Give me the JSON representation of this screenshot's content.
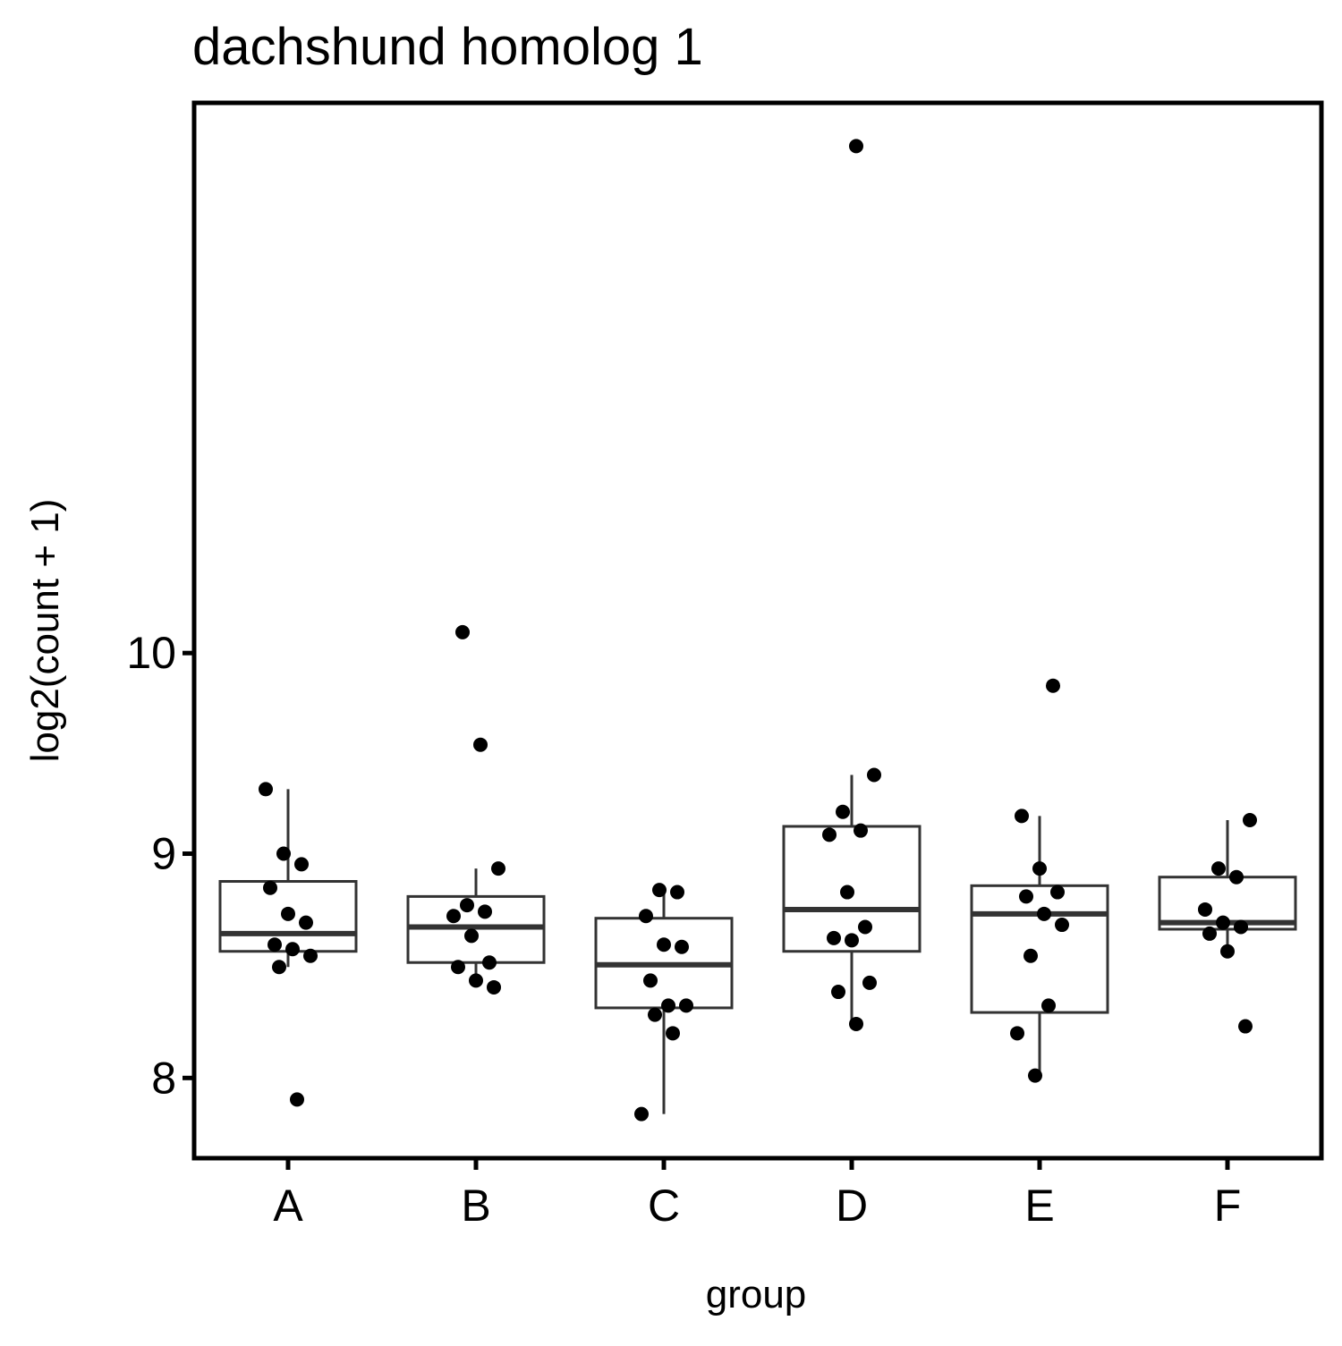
{
  "chart_data": {
    "type": "box",
    "title": "dachshund homolog 1",
    "x_label": "group",
    "y_label": "log2(count + 1)",
    "categories": [
      "A",
      "B",
      "C",
      "D",
      "E",
      "F"
    ],
    "stats": [
      {
        "low": 8.48,
        "q1": 8.55,
        "median": 8.63,
        "q3": 8.87,
        "high": 9.31
      },
      {
        "low": 8.4,
        "q1": 8.5,
        "median": 8.66,
        "q3": 8.8,
        "high": 8.93
      },
      {
        "low": 7.85,
        "q1": 8.3,
        "median": 8.49,
        "q3": 8.7,
        "high": 8.83
      },
      {
        "low": 8.23,
        "q1": 8.55,
        "median": 8.74,
        "q3": 9.13,
        "high": 9.38
      },
      {
        "low": 8.01,
        "q1": 8.28,
        "median": 8.72,
        "q3": 8.85,
        "high": 9.18
      },
      {
        "low": 8.54,
        "q1": 8.65,
        "median": 8.68,
        "q3": 8.89,
        "high": 9.16
      }
    ],
    "points": [
      [
        9.31,
        9.0,
        8.95,
        8.84,
        8.72,
        8.68,
        8.58,
        8.56,
        8.53,
        8.48,
        7.91
      ],
      [
        10.11,
        9.53,
        8.93,
        8.76,
        8.73,
        8.71,
        8.62,
        8.5,
        8.48,
        8.42,
        8.39
      ],
      [
        8.83,
        8.82,
        8.71,
        8.58,
        8.57,
        8.42,
        8.31,
        8.31,
        8.27,
        8.19,
        7.85
      ],
      [
        13.05,
        9.38,
        9.2,
        9.11,
        9.09,
        8.82,
        8.66,
        8.61,
        8.6,
        8.41,
        8.37,
        8.23
      ],
      [
        9.83,
        9.18,
        8.93,
        8.82,
        8.8,
        8.72,
        8.67,
        8.53,
        8.31,
        8.19,
        8.01
      ],
      [
        9.16,
        8.93,
        8.89,
        8.74,
        8.68,
        8.66,
        8.63,
        8.55,
        8.22
      ]
    ],
    "point_color": "#000000",
    "box_color": "#333333",
    "log_scale": true,
    "ylim": [
      7.67,
      13.35
    ],
    "yticks": [
      8,
      9,
      10
    ]
  }
}
